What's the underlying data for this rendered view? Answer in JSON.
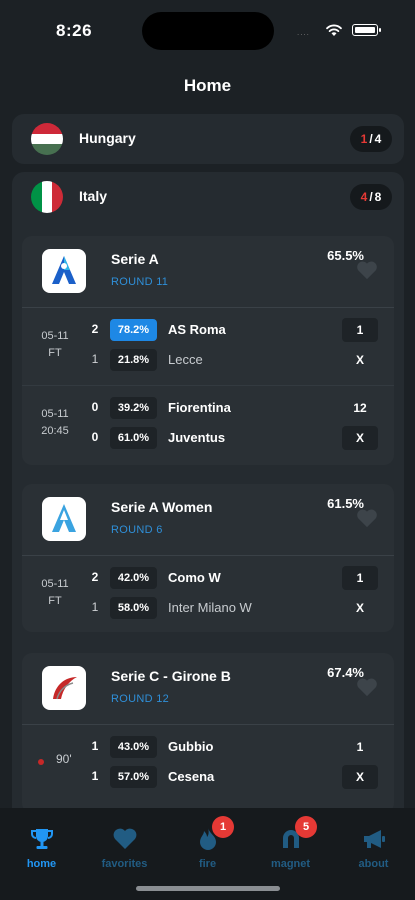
{
  "status_bar": {
    "time": "8:26",
    "signal": "....",
    "colors": {
      "accent": "#2196f3",
      "live": "#e53935"
    }
  },
  "header": {
    "title": "Home"
  },
  "countries": [
    {
      "name": "Hungary",
      "flag": "hungary-flag",
      "live_count": "1",
      "separator": "/",
      "total": "4"
    },
    {
      "name": "Italy",
      "flag": "italy-flag",
      "live_count": "4",
      "separator": "/",
      "total": "8"
    }
  ],
  "leagues": [
    {
      "name": "Serie A",
      "round": "ROUND 11",
      "pct": "65.5%",
      "logo": "serie-a-logo",
      "matches": [
        {
          "date": "05-11",
          "status": "FT",
          "home": {
            "score": "2",
            "pct": "78.2%",
            "team": "AS Roma"
          },
          "away": {
            "score": "1",
            "pct": "21.8%",
            "team": "Lecce"
          },
          "tip1": "1",
          "tip2": "X"
        },
        {
          "date": "05-11",
          "status": "20:45",
          "home": {
            "score": "0",
            "pct": "39.2%",
            "team": "Fiorentina"
          },
          "away": {
            "score": "0",
            "pct": "61.0%",
            "team": "Juventus"
          },
          "tip1": "12",
          "tip2": "X"
        }
      ]
    },
    {
      "name": "Serie A Women",
      "round": "ROUND 6",
      "pct": "61.5%",
      "logo": "serie-a-women-logo",
      "matches": [
        {
          "date": "05-11",
          "status": "FT",
          "home": {
            "score": "2",
            "pct": "42.0%",
            "team": "Como W"
          },
          "away": {
            "score": "1",
            "pct": "58.0%",
            "team": "Inter Milano W"
          },
          "tip1": "1",
          "tip2": "X"
        }
      ]
    },
    {
      "name": "Serie C - Girone B",
      "round": "ROUND 12",
      "pct": "67.4%",
      "logo": "serie-c-logo",
      "matches": [
        {
          "minute": "90'",
          "home": {
            "score": "1",
            "pct": "43.0%",
            "team": "Gubbio"
          },
          "away": {
            "score": "1",
            "pct": "57.0%",
            "team": "Cesena"
          },
          "tip1": "1",
          "tip2": "X"
        }
      ]
    }
  ],
  "tabs": [
    {
      "label": "home",
      "icon": "trophy-icon",
      "active": true
    },
    {
      "label": "favorites",
      "icon": "heart-icon"
    },
    {
      "label": "fire",
      "icon": "fire-icon",
      "badge": "1"
    },
    {
      "label": "magnet",
      "icon": "magnet-icon",
      "badge": "5"
    },
    {
      "label": "about",
      "icon": "megaphone-icon"
    }
  ]
}
